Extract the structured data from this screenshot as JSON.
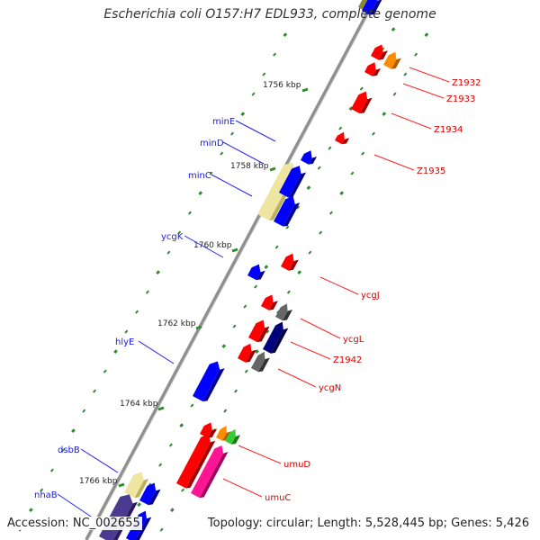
{
  "title": "Escherichia coli O157:H7 EDL933, complete genome",
  "footer": {
    "accession": "Accession: NC_002655",
    "topology": "Topology: circular; Length: 5,528,445 bp; Genes: 5,426"
  },
  "colors": {
    "backbone": "#8f8f8f",
    "tick": "#2e8b2e",
    "gene_label_left": "#1a1ae0",
    "gene_label_right": "#d40000",
    "leader_left": "#2222ff",
    "leader_right": "#ff2222",
    "scale_label": "#222222"
  },
  "scale_labels": [
    {
      "label": "1756 kbp"
    },
    {
      "label": "1758 kbp"
    },
    {
      "label": "1760 kbp"
    },
    {
      "label": "1762 kbp"
    },
    {
      "label": "1764 kbp"
    },
    {
      "label": "1766 kbp"
    }
  ],
  "gene_labels": [
    {
      "name": "minE",
      "side": "left"
    },
    {
      "name": "minD",
      "side": "left"
    },
    {
      "name": "minC",
      "side": "left"
    },
    {
      "name": "ycgK",
      "side": "left"
    },
    {
      "name": "hlyE",
      "side": "left"
    },
    {
      "name": "dsbB",
      "side": "left"
    },
    {
      "name": "nhaB",
      "side": "left"
    },
    {
      "name": "Z1932",
      "side": "right"
    },
    {
      "name": "Z1933",
      "side": "right"
    },
    {
      "name": "Z1934",
      "side": "right"
    },
    {
      "name": "Z1935",
      "side": "right"
    },
    {
      "name": "ycgJ",
      "side": "right"
    },
    {
      "name": "ycgL",
      "side": "right"
    },
    {
      "name": "Z1942",
      "side": "right"
    },
    {
      "name": "ycgN",
      "side": "right"
    },
    {
      "name": "umuD",
      "side": "right"
    },
    {
      "name": "umuC",
      "side": "right"
    }
  ]
}
